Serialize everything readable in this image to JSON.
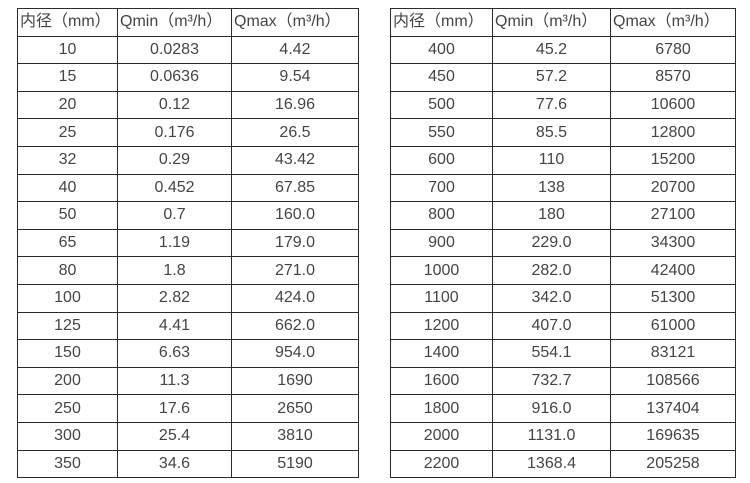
{
  "tables": [
    {
      "name": "left",
      "headers": [
        "内径（mm）",
        "Qmin（m³/h）",
        "Qmax（m³/h）"
      ],
      "rows": [
        [
          "10",
          "0.0283",
          "4.42"
        ],
        [
          "15",
          "0.0636",
          "9.54"
        ],
        [
          "20",
          "0.12",
          "16.96"
        ],
        [
          "25",
          "0.176",
          "26.5"
        ],
        [
          "32",
          "0.29",
          "43.42"
        ],
        [
          "40",
          "0.452",
          "67.85"
        ],
        [
          "50",
          "0.7",
          "160.0"
        ],
        [
          "65",
          "1.19",
          "179.0"
        ],
        [
          "80",
          "1.8",
          "271.0"
        ],
        [
          "100",
          "2.82",
          "424.0"
        ],
        [
          "125",
          "4.41",
          "662.0"
        ],
        [
          "150",
          "6.63",
          "954.0"
        ],
        [
          "200",
          "11.3",
          "1690"
        ],
        [
          "250",
          "17.6",
          "2650"
        ],
        [
          "300",
          "25.4",
          "3810"
        ],
        [
          "350",
          "34.6",
          "5190"
        ]
      ]
    },
    {
      "name": "right",
      "headers": [
        "内径（mm）",
        "Qmin（m³/h）",
        "Qmax（m³/h）"
      ],
      "rows": [
        [
          "400",
          "45.2",
          "6780"
        ],
        [
          "450",
          "57.2",
          "8570"
        ],
        [
          "500",
          "77.6",
          "10600"
        ],
        [
          "550",
          "85.5",
          "12800"
        ],
        [
          "600",
          "110",
          "15200"
        ],
        [
          "700",
          "138",
          "20700"
        ],
        [
          "800",
          "180",
          "27100"
        ],
        [
          "900",
          "229.0",
          "34300"
        ],
        [
          "1000",
          "282.0",
          "42400"
        ],
        [
          "1100",
          "342.0",
          "51300"
        ],
        [
          "1200",
          "407.0",
          "61000"
        ],
        [
          "1400",
          "554.1",
          "83121"
        ],
        [
          "1600",
          "732.7",
          "108566"
        ],
        [
          "1800",
          "916.0",
          "137404"
        ],
        [
          "2000",
          "1131.0",
          "169635"
        ],
        [
          "2200",
          "1368.4",
          "205258"
        ]
      ]
    }
  ],
  "colors": {
    "background": "#ffffff",
    "border": "#2b2b2b",
    "text": "#454545"
  }
}
